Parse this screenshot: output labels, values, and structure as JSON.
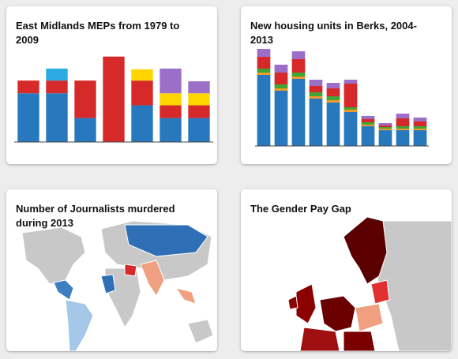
{
  "cards": [
    {
      "title": "East Midlands MEPs from 1979 to 2009",
      "chart_data": {
        "type": "bar",
        "stacked": true,
        "ylim": [
          0,
          120
        ],
        "categories": [
          null,
          null,
          null,
          null,
          null,
          null,
          null
        ],
        "series": [
          {
            "color": "#2878bd",
            "values": [
              65,
              65,
              32,
              0,
              49,
              32,
              32
            ]
          },
          {
            "color": "#d62a2a",
            "values": [
              17,
              17,
              50,
              114,
              33,
              17,
              17
            ]
          },
          {
            "color": "#ffd500",
            "values": [
              0,
              0,
              0,
              0,
              15,
              16,
              16
            ]
          },
          {
            "color": "#2aabe4",
            "values": [
              0,
              16,
              0,
              0,
              0,
              0,
              0
            ]
          },
          {
            "color": "#9b6fc7",
            "values": [
              0,
              0,
              0,
              0,
              0,
              33,
              16
            ]
          }
        ]
      }
    },
    {
      "title": "New housing units in Berks, 2004-2013",
      "chart_data": {
        "type": "bar",
        "stacked": true,
        "ylim": [
          0,
          130
        ],
        "categories": [
          null,
          null,
          null,
          null,
          null,
          null,
          null,
          null,
          null,
          null
        ],
        "series": [
          {
            "color": "#2878bd",
            "values": [
              90,
              70,
              85,
              60,
              55,
              43,
              25,
              20,
              20,
              20
            ]
          },
          {
            "color": "#f09a2a",
            "values": [
              3,
              3,
              3,
              3,
              3,
              3,
              2,
              2,
              2,
              2
            ]
          },
          {
            "color": "#3fa535",
            "values": [
              5,
              5,
              5,
              5,
              5,
              3,
              3,
              2,
              3,
              3
            ]
          },
          {
            "color": "#d62a2a",
            "values": [
              15,
              15,
              17,
              8,
              10,
              30,
              4,
              2,
              10,
              6
            ]
          },
          {
            "color": "#9b6fc7",
            "values": [
              10,
              10,
              10,
              8,
              7,
              5,
              4,
              3,
              6,
              5
            ]
          }
        ]
      }
    },
    {
      "title": "Number of Journalists murdered during 2013"
    },
    {
      "title": "The Gender Pay Gap"
    }
  ]
}
